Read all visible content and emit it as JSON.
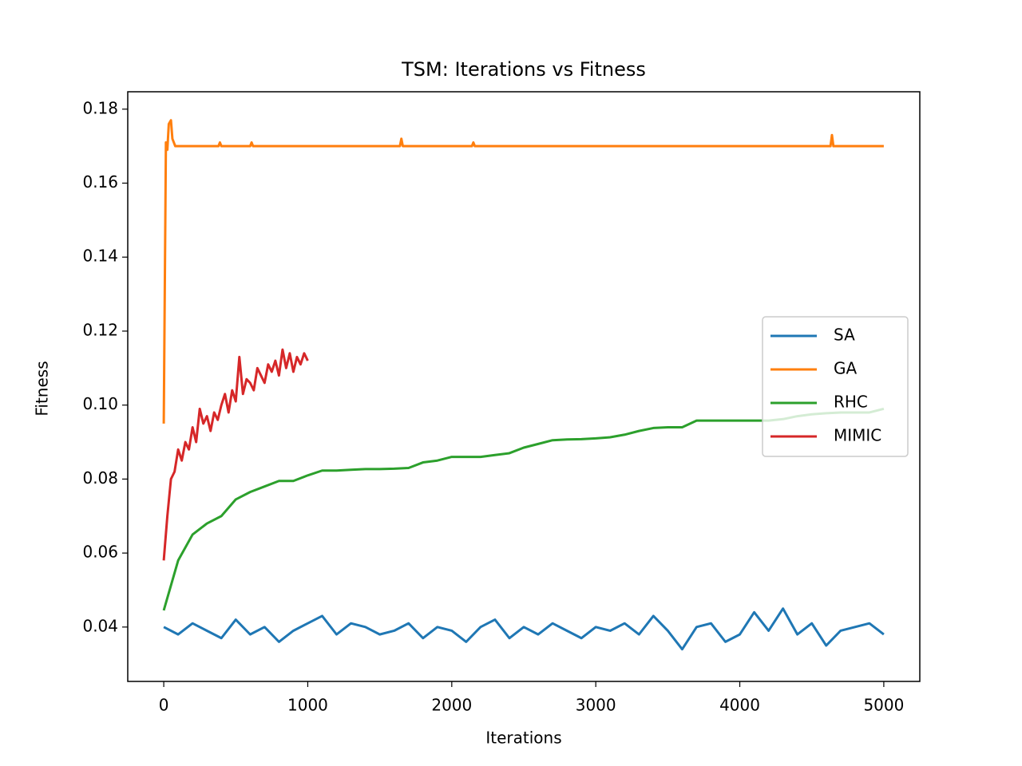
{
  "chart_data": {
    "type": "line",
    "title": "TSM: Iterations vs Fitness",
    "x_label": "Iterations",
    "y_label": "Fitness",
    "xlim": [
      -250,
      5250
    ],
    "ylim": [
      0.0253,
      0.1847
    ],
    "xticks": [
      0,
      1000,
      2000,
      3000,
      4000,
      5000
    ],
    "yticks": [
      0.04,
      0.06,
      0.08,
      {
        "value": 0.1,
        "label": "0.10"
      },
      0.12,
      0.14,
      0.16,
      0.18
    ],
    "legend": "center right",
    "series": [
      {
        "name": "SA",
        "color": "#1f77b4",
        "x": [
          0,
          100,
          200,
          300,
          400,
          500,
          600,
          700,
          800,
          900,
          1000,
          1100,
          1200,
          1300,
          1400,
          1500,
          1600,
          1700,
          1800,
          1900,
          2000,
          2100,
          2200,
          2300,
          2400,
          2500,
          2600,
          2700,
          2800,
          2900,
          3000,
          3100,
          3200,
          3300,
          3400,
          3500,
          3600,
          3700,
          3800,
          3900,
          4000,
          4100,
          4200,
          4300,
          4400,
          4500,
          4600,
          4700,
          4800,
          4900,
          5000
        ],
        "values": [
          0.04,
          0.038,
          0.041,
          0.039,
          0.037,
          0.042,
          0.038,
          0.04,
          0.036,
          0.039,
          0.041,
          0.043,
          0.038,
          0.041,
          0.04,
          0.038,
          0.039,
          0.041,
          0.037,
          0.04,
          0.039,
          0.036,
          0.04,
          0.042,
          0.037,
          0.04,
          0.038,
          0.041,
          0.039,
          0.037,
          0.04,
          0.039,
          0.041,
          0.038,
          0.043,
          0.039,
          0.034,
          0.04,
          0.041,
          0.036,
          0.038,
          0.044,
          0.039,
          0.045,
          0.038,
          0.041,
          0.035,
          0.039,
          0.04,
          0.041,
          0.038
        ]
      },
      {
        "name": "GA",
        "color": "#ff7f0e",
        "x": [
          0,
          15,
          25,
          35,
          50,
          60,
          80,
          100,
          380,
          390,
          400,
          600,
          610,
          620,
          1640,
          1650,
          1660,
          2140,
          2150,
          2160,
          4630,
          4640,
          4650,
          5000
        ],
        "values": [
          0.095,
          0.171,
          0.169,
          0.176,
          0.177,
          0.172,
          0.17,
          0.17,
          0.17,
          0.171,
          0.17,
          0.17,
          0.171,
          0.17,
          0.17,
          0.172,
          0.17,
          0.17,
          0.171,
          0.17,
          0.17,
          0.173,
          0.17,
          0.17
        ]
      },
      {
        "name": "RHC",
        "color": "#2ca02c",
        "x": [
          0,
          100,
          200,
          300,
          400,
          500,
          600,
          700,
          800,
          900,
          1000,
          1100,
          1200,
          1300,
          1400,
          1500,
          1600,
          1700,
          1800,
          1900,
          2000,
          2100,
          2200,
          2300,
          2400,
          2500,
          2600,
          2700,
          2800,
          2900,
          3000,
          3100,
          3200,
          3300,
          3400,
          3500,
          3600,
          3700,
          3800,
          3900,
          4000,
          4100,
          4200,
          4300,
          4400,
          4500,
          4600,
          4700,
          4800,
          4900,
          5000
        ],
        "values": [
          0.0445,
          0.058,
          0.065,
          0.068,
          0.07,
          0.0745,
          0.0765,
          0.078,
          0.0795,
          0.0795,
          0.081,
          0.0823,
          0.0823,
          0.0825,
          0.0827,
          0.0827,
          0.0828,
          0.083,
          0.0845,
          0.085,
          0.086,
          0.086,
          0.086,
          0.0865,
          0.087,
          0.0885,
          0.0895,
          0.0905,
          0.0907,
          0.0908,
          0.091,
          0.0913,
          0.092,
          0.093,
          0.0938,
          0.094,
          0.094,
          0.0958,
          0.0958,
          0.0958,
          0.0958,
          0.0958,
          0.0958,
          0.0962,
          0.097,
          0.0975,
          0.0978,
          0.098,
          0.098,
          0.098,
          0.099
        ]
      },
      {
        "name": "MIMIC",
        "color": "#d62728",
        "x": [
          0,
          25,
          50,
          75,
          100,
          125,
          150,
          175,
          200,
          225,
          250,
          275,
          300,
          325,
          350,
          375,
          400,
          425,
          450,
          475,
          500,
          525,
          550,
          575,
          600,
          625,
          650,
          675,
          700,
          725,
          750,
          775,
          800,
          825,
          850,
          875,
          900,
          925,
          950,
          975,
          1000
        ],
        "values": [
          0.058,
          0.07,
          0.08,
          0.082,
          0.088,
          0.085,
          0.09,
          0.088,
          0.094,
          0.09,
          0.099,
          0.095,
          0.097,
          0.093,
          0.098,
          0.096,
          0.1,
          0.103,
          0.098,
          0.104,
          0.101,
          0.113,
          0.103,
          0.107,
          0.106,
          0.104,
          0.11,
          0.108,
          0.106,
          0.111,
          0.109,
          0.112,
          0.108,
          0.115,
          0.11,
          0.114,
          0.109,
          0.113,
          0.111,
          0.114,
          0.112
        ]
      }
    ]
  }
}
